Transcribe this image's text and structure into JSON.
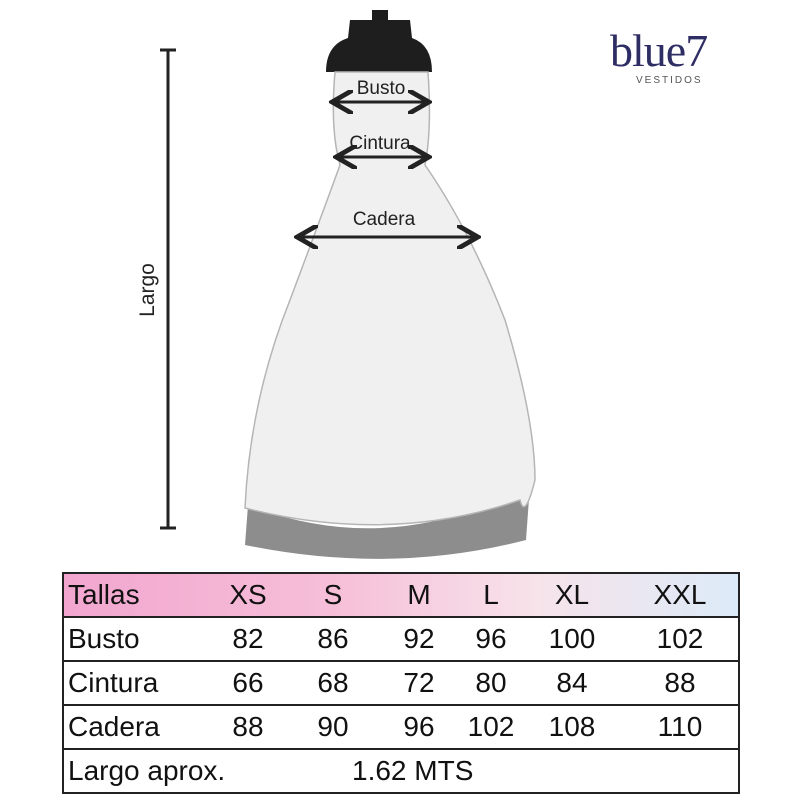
{
  "brand": {
    "name": "blue7",
    "tagline": "VESTIDOS",
    "color": "#2e2d64"
  },
  "diagram": {
    "busto": "Busto",
    "cintura": "Cintura",
    "cadera": "Cadera",
    "largo": "Largo"
  },
  "table": {
    "headers": [
      "Tallas",
      "XS",
      "S",
      "M",
      "L",
      "XL",
      "XXL"
    ],
    "rows": [
      {
        "label": "Busto",
        "values": [
          "82",
          "86",
          "92",
          "96",
          "100",
          "102"
        ]
      },
      {
        "label": "Cintura",
        "values": [
          "66",
          "68",
          "72",
          "80",
          "84",
          "88"
        ]
      },
      {
        "label": "Cadera",
        "values": [
          "88",
          "90",
          "96",
          "102",
          "108",
          "110"
        ]
      }
    ],
    "largo_label": "Largo aprox.",
    "largo_value": "1.62 MTS"
  }
}
